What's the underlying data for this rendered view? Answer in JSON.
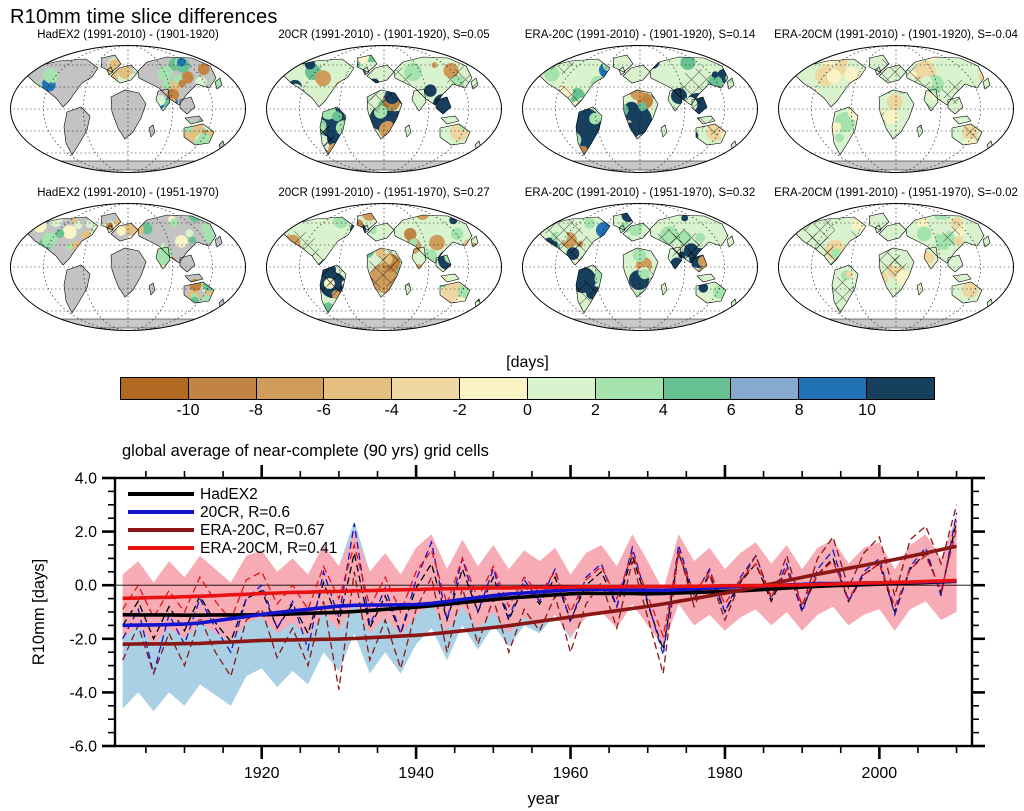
{
  "page_title": "R10mm time slice differences",
  "maps": {
    "panels": [
      {
        "title": "HadEX2 (1991-2010) - (1901-1920)"
      },
      {
        "title": "20CR (1991-2010) - (1901-1920), S=0.05"
      },
      {
        "title": "ERA-20C (1991-2010) - (1901-1920), S=0.14"
      },
      {
        "title": "ERA-20CM (1991-2010) - (1901-1920), S=-0.04"
      },
      {
        "title": "HadEX2 (1991-2010) - (1951-1970)"
      },
      {
        "title": "20CR (1991-2010) - (1951-1970), S=0.27"
      },
      {
        "title": "ERA-20C (1991-2010) - (1951-1970), S=0.32"
      },
      {
        "title": "ERA-20CM (1991-2010) - (1951-1970), S=-0.02"
      }
    ]
  },
  "colorbar": {
    "label": "[days]",
    "tick_labels": [
      "-10",
      "-8",
      "-6",
      "-4",
      "-2",
      "0",
      "2",
      "4",
      "6",
      "8",
      "10"
    ],
    "colors": [
      "#b06a21",
      "#c28442",
      "#cf9c5c",
      "#e3c07f",
      "#eed7a0",
      "#f9f3c6",
      "#d9f3cf",
      "#a4e3ad",
      "#68c193",
      "#84abce",
      "#2273b5",
      "#173f5e"
    ],
    "missing_data_color": "#c3c3c3"
  },
  "chart_data": {
    "type": "line",
    "title": "global average of near-complete (90 yrs) grid cells",
    "xlabel": "year",
    "ylabel": "R10mm [days]",
    "xlim": [
      1901,
      2012
    ],
    "ylim": [
      -6,
      4
    ],
    "x_ticks_major": [
      1920,
      1940,
      1960,
      1980,
      2000
    ],
    "x_tick_minor_step": 5,
    "y_ticks_major": [
      -6,
      -4,
      -2,
      0,
      2,
      4
    ],
    "y_tick_labels": [
      "-6.0",
      "-4.0",
      "-2.0",
      "0.0",
      "2.0",
      "4.0"
    ],
    "y_tick_minor_step": 0.5,
    "zero_line": true,
    "legend_position": "top-left",
    "years": [
      1902,
      1904,
      1906,
      1908,
      1910,
      1912,
      1914,
      1916,
      1918,
      1920,
      1922,
      1924,
      1926,
      1928,
      1930,
      1932,
      1934,
      1936,
      1938,
      1940,
      1942,
      1944,
      1946,
      1948,
      1950,
      1952,
      1954,
      1956,
      1958,
      1960,
      1962,
      1964,
      1966,
      1968,
      1970,
      1972,
      1974,
      1976,
      1978,
      1980,
      1982,
      1984,
      1986,
      1988,
      1990,
      1992,
      1994,
      1996,
      1998,
      2000,
      2002,
      2004,
      2006,
      2008,
      2010
    ],
    "series": [
      {
        "name": "HadEX2",
        "color": "#000000",
        "annual": [
          -1.5,
          -0.6,
          -2.0,
          -0.8,
          -1.7,
          -0.4,
          -1.4,
          -2.1,
          -0.5,
          -0.2,
          -1.6,
          -0.7,
          -1.8,
          0.1,
          -1.4,
          1.2,
          -1.6,
          -0.4,
          -1.8,
          -0.1,
          0.8,
          -1.3,
          0.6,
          -1.0,
          0.3,
          -1.3,
          0.0,
          -0.7,
          0.3,
          -1.3,
          0.0,
          0.5,
          -0.8,
          1.1,
          -0.7,
          -2.4,
          1.2,
          -0.5,
          0.4,
          -1.0,
          0.1,
          0.8,
          -0.6,
          0.6,
          -0.9,
          0.4,
          1.0,
          -0.6,
          0.4,
          0.8,
          -1.0,
          0.6,
          1.2,
          -0.3,
          2.4
        ],
        "smoothed": [
          -1.1,
          -1.11,
          -1.11,
          -1.11,
          -1.12,
          -1.12,
          -1.11,
          -1.11,
          -1.11,
          -1.1,
          -1.09,
          -1.07,
          -1.05,
          -1.03,
          -1.01,
          -0.98,
          -0.94,
          -0.9,
          -0.86,
          -0.82,
          -0.77,
          -0.71,
          -0.65,
          -0.59,
          -0.53,
          -0.48,
          -0.44,
          -0.4,
          -0.36,
          -0.32,
          -0.3,
          -0.31,
          -0.31,
          -0.31,
          -0.32,
          -0.31,
          -0.29,
          -0.27,
          -0.25,
          -0.23,
          -0.21,
          -0.18,
          -0.14,
          -0.11,
          -0.07,
          -0.04,
          -0.02,
          0.0,
          0.02,
          0.04,
          0.06,
          0.08,
          0.1,
          0.12,
          0.15
        ]
      },
      {
        "name": "20CR, R=0.6",
        "color": "#1414cc",
        "band_color": "#a9d0e4",
        "band_upper": [
          0.0,
          0.6,
          -0.2,
          0.5,
          0.0,
          0.8,
          0.3,
          -0.1,
          0.9,
          1.2,
          0.4,
          0.9,
          0.3,
          1.5,
          0.7,
          2.4,
          0.5,
          1.1,
          0.3,
          1.3,
          1.8,
          0.5,
          1.7,
          0.7,
          1.5,
          0.5,
          1.2,
          0.8,
          1.3,
          0.3,
          1.1,
          1.3,
          0.5,
          1.6,
          0.5,
          -0.5,
          1.5,
          0.5,
          1.0,
          0.3,
          0.9,
          1.3,
          0.5,
          1.1,
          0.2,
          1.0,
          1.4,
          0.4,
          1.0,
          1.2,
          0.2,
          1.1,
          1.5,
          0.6,
          2.2
        ],
        "band_lower": [
          -4.6,
          -4.0,
          -4.7,
          -4.0,
          -4.5,
          -3.7,
          -4.1,
          -4.5,
          -3.4,
          -3.1,
          -3.8,
          -3.2,
          -3.7,
          -2.5,
          -3.2,
          -1.8,
          -3.3,
          -2.5,
          -3.3,
          -2.2,
          -1.6,
          -2.8,
          -1.5,
          -2.4,
          -1.5,
          -2.3,
          -1.5,
          -1.8,
          -1.1,
          -2.0,
          -1.1,
          -0.7,
          -1.5,
          -0.4,
          -1.4,
          -2.4,
          -0.3,
          -1.2,
          -0.7,
          -1.4,
          -0.8,
          -0.3,
          -1.1,
          -0.4,
          -1.3,
          -0.5,
          -0.1,
          -1.1,
          -0.5,
          -0.3,
          -1.3,
          -0.4,
          0.0,
          -0.9,
          0.7
        ],
        "annual": [
          -2.0,
          -0.9,
          -3.3,
          -1.1,
          -2.2,
          -0.5,
          -1.6,
          -2.5,
          -0.5,
          0.0,
          -1.6,
          -0.6,
          -2.4,
          0.5,
          -1.2,
          2.3,
          -1.5,
          -0.1,
          -1.8,
          0.2,
          1.6,
          -1.3,
          1.0,
          -1.0,
          0.6,
          -1.2,
          0.2,
          -0.6,
          0.6,
          -1.4,
          0.3,
          0.8,
          -0.8,
          1.4,
          -0.6,
          -2.6,
          1.5,
          -0.4,
          0.6,
          -1.0,
          0.3,
          1.1,
          -0.5,
          0.8,
          -1.0,
          0.6,
          1.3,
          -0.6,
          0.5,
          1.0,
          -1.1,
          0.7,
          1.4,
          -0.4,
          2.7
        ],
        "smoothed": [
          -1.5,
          -1.49,
          -1.48,
          -1.47,
          -1.45,
          -1.41,
          -1.33,
          -1.25,
          -1.17,
          -1.09,
          -1.02,
          -0.96,
          -0.9,
          -0.84,
          -0.78,
          -0.75,
          -0.74,
          -0.74,
          -0.73,
          -0.72,
          -0.68,
          -0.61,
          -0.53,
          -0.46,
          -0.39,
          -0.33,
          -0.29,
          -0.25,
          -0.21,
          -0.17,
          -0.15,
          -0.16,
          -0.17,
          -0.18,
          -0.19,
          -0.19,
          -0.17,
          -0.14,
          -0.11,
          -0.08,
          -0.04,
          -0.03,
          -0.01,
          0.01,
          0.03,
          0.06,
          0.06,
          0.07,
          0.08,
          0.09,
          0.1,
          0.11,
          0.12,
          0.14,
          0.15
        ]
      },
      {
        "name": "ERA-20C, R=0.67",
        "color": "#8b1616",
        "annual": [
          -2.8,
          -1.5,
          -3.3,
          -1.8,
          -3.0,
          -1.2,
          -2.5,
          -3.4,
          -1.3,
          -0.9,
          -2.7,
          -1.6,
          -3.0,
          -0.6,
          -3.9,
          0.5,
          -2.8,
          -1.3,
          -3.1,
          -0.9,
          0.3,
          -2.5,
          -0.1,
          -2.2,
          -0.5,
          -2.5,
          -0.9,
          -1.7,
          -0.4,
          -2.5,
          -0.7,
          0.1,
          -1.6,
          0.9,
          -1.2,
          -3.3,
          1.3,
          -0.8,
          0.4,
          -1.3,
          0.1,
          1.1,
          -0.5,
          1.1,
          -0.8,
          1.0,
          1.8,
          -0.1,
          1.2,
          1.8,
          -0.4,
          1.7,
          2.2,
          0.8,
          3.0
        ],
        "smoothed": [
          -2.2,
          -2.19,
          -2.19,
          -2.19,
          -2.18,
          -2.17,
          -2.14,
          -2.12,
          -2.09,
          -2.06,
          -2.05,
          -2.04,
          -2.03,
          -2.02,
          -2.01,
          -1.99,
          -1.96,
          -1.93,
          -1.9,
          -1.87,
          -1.82,
          -1.76,
          -1.7,
          -1.64,
          -1.58,
          -1.51,
          -1.43,
          -1.35,
          -1.27,
          -1.19,
          -1.11,
          -1.03,
          -0.95,
          -0.87,
          -0.79,
          -0.7,
          -0.6,
          -0.5,
          -0.4,
          -0.3,
          -0.19,
          -0.07,
          0.05,
          0.17,
          0.29,
          0.41,
          0.52,
          0.63,
          0.74,
          0.85,
          0.96,
          1.08,
          1.2,
          1.33,
          1.45
        ]
      },
      {
        "name": "ERA-20CM, R=0.41",
        "color": "#e81212",
        "band_color": "#f7abb5",
        "band_upper": [
          0.4,
          0.9,
          0.1,
          0.9,
          0.3,
          1.1,
          0.6,
          0.1,
          1.1,
          1.3,
          0.5,
          1.0,
          0.4,
          1.5,
          0.7,
          2.0,
          0.5,
          1.2,
          0.4,
          1.4,
          1.9,
          0.6,
          1.7,
          0.7,
          1.5,
          0.6,
          1.3,
          0.9,
          1.4,
          0.4,
          1.2,
          1.5,
          0.7,
          1.9,
          0.9,
          -0.2,
          1.9,
          0.9,
          1.4,
          0.6,
          1.2,
          1.6,
          0.8,
          1.5,
          0.6,
          1.4,
          1.7,
          0.8,
          1.4,
          1.6,
          0.6,
          1.5,
          1.9,
          1.0,
          2.6
        ],
        "band_lower": [
          -2.0,
          -1.5,
          -2.2,
          -1.6,
          -2.0,
          -1.4,
          -1.8,
          -2.1,
          -1.4,
          -1.2,
          -1.8,
          -1.4,
          -1.9,
          -1.0,
          -1.7,
          -0.6,
          -1.8,
          -1.2,
          -1.9,
          -1.1,
          -0.7,
          -1.7,
          -0.8,
          -1.6,
          -1.0,
          -1.8,
          -1.2,
          -1.5,
          -1.1,
          -1.9,
          -1.2,
          -1.0,
          -1.6,
          -0.7,
          -1.5,
          -2.3,
          -0.7,
          -1.5,
          -1.1,
          -1.7,
          -1.2,
          -0.9,
          -1.5,
          -1.0,
          -1.7,
          -1.1,
          -0.8,
          -1.5,
          -1.1,
          -0.9,
          -1.7,
          -0.9,
          -0.6,
          -1.3,
          -1.0
        ],
        "annual": [
          -0.9,
          0.0,
          -1.2,
          -0.2,
          -1.0,
          0.3,
          -0.6,
          -1.3,
          0.2,
          0.5,
          -0.7,
          0.0,
          -0.9,
          0.7,
          -0.5,
          1.5,
          -0.8,
          0.3,
          -1.0,
          0.5,
          1.3,
          -0.7,
          1.0,
          -0.5,
          0.7,
          -0.8,
          0.3,
          -0.3,
          0.5,
          -1.0,
          0.2,
          0.7,
          -0.5,
          1.2,
          -0.4,
          -1.9,
          1.2,
          -0.3,
          0.5,
          -0.7,
          0.2,
          0.8,
          -0.4,
          0.6,
          -0.7,
          0.4,
          0.9,
          -0.5,
          0.4,
          0.8,
          -0.8,
          0.6,
          1.1,
          -0.2,
          2.1
        ],
        "smoothed": [
          -0.49,
          -0.48,
          -0.46,
          -0.45,
          -0.43,
          -0.41,
          -0.39,
          -0.36,
          -0.34,
          -0.31,
          -0.29,
          -0.27,
          -0.26,
          -0.24,
          -0.23,
          -0.21,
          -0.2,
          -0.18,
          -0.17,
          -0.16,
          -0.14,
          -0.13,
          -0.12,
          -0.11,
          -0.1,
          -0.1,
          -0.09,
          -0.09,
          -0.08,
          -0.07,
          -0.06,
          -0.06,
          -0.06,
          -0.05,
          -0.05,
          -0.05,
          -0.04,
          -0.04,
          -0.03,
          -0.02,
          -0.02,
          -0.01,
          -0.01,
          0.0,
          0.01,
          0.03,
          0.04,
          0.06,
          0.08,
          0.09,
          0.11,
          0.12,
          0.14,
          0.16,
          0.18
        ]
      }
    ]
  }
}
